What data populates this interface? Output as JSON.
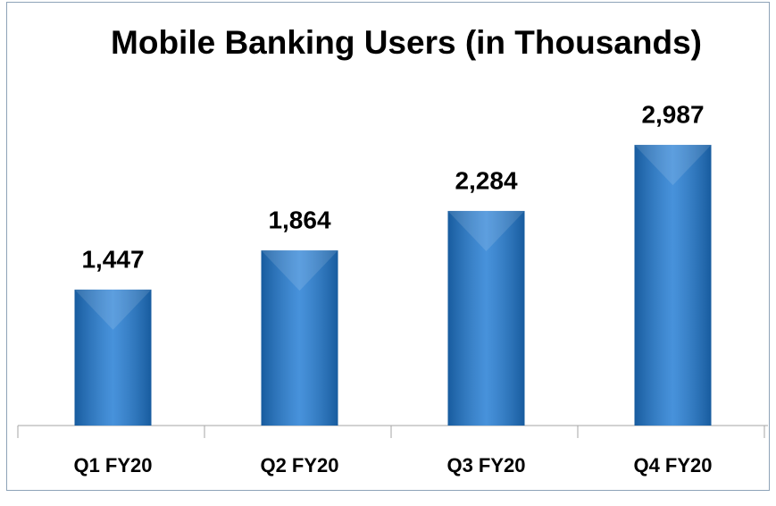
{
  "chart_data": {
    "type": "bar",
    "title": "Mobile Banking Users (in Thousands)",
    "categories": [
      "Q1 FY20",
      "Q2 FY20",
      "Q3 FY20",
      "Q4 FY20"
    ],
    "values": [
      1447,
      1864,
      2284,
      2987
    ],
    "value_labels": [
      "1,447",
      "1,864",
      "2,284",
      "2,987"
    ],
    "color": "#1f7ad3"
  }
}
